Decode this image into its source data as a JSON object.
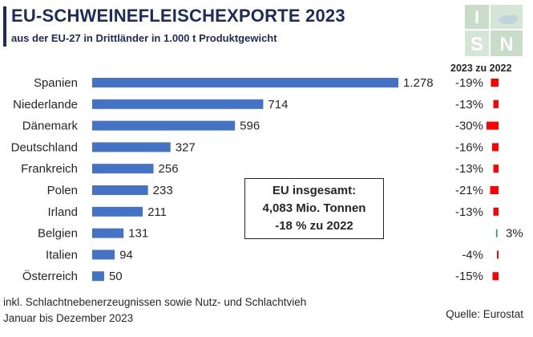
{
  "header": {
    "title": "EU-SCHWEINEFLEISCHEXPORTE 2023",
    "subtitle": "aus der EU-27 in Drittländer in 1.000 t Produktgewicht"
  },
  "logo": {
    "text": "ISN",
    "icon": "isn-logo-icon"
  },
  "change_header": "2023 zu 2022",
  "infobox": {
    "line1": "EU insgesamt:",
    "line2": "4,083 Mio. Tonnen",
    "line3": "-18 % zu 2022"
  },
  "footnote": {
    "line1": "inkl. Schlachtnebenerzeugnissen sowie Nutz- und Schlachtvieh",
    "line2": "Januar bis Dezember 2023"
  },
  "source": "Quelle: Eurostat",
  "colors": {
    "bar": "#4472c4",
    "negative": "#ff0000",
    "positive": "#00b050",
    "title": "#1f2a5c"
  },
  "chart_data": {
    "type": "bar",
    "orientation": "horizontal",
    "categories": [
      "Spanien",
      "Niederlande",
      "Dänemark",
      "Deutschland",
      "Frankreich",
      "Polen",
      "Irland",
      "Belgien",
      "Italien",
      "Österreich"
    ],
    "values": [
      1278,
      714,
      596,
      327,
      256,
      233,
      211,
      131,
      94,
      50
    ],
    "value_labels": [
      "1.278",
      "714",
      "596",
      "327",
      "256",
      "233",
      "211",
      "131",
      "94",
      "50"
    ],
    "change_pct": [
      -19,
      -13,
      -30,
      -16,
      -13,
      -21,
      -13,
      3,
      -4,
      -15
    ],
    "change_labels": [
      "-19%",
      "-13%",
      "-30%",
      "-16%",
      "-13%",
      "-21%",
      "-13%",
      "3%",
      "-4%",
      "-15%"
    ],
    "xlim": [
      0,
      1278
    ],
    "grid": false,
    "legend": "none"
  }
}
